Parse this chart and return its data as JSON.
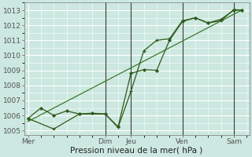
{
  "xlabel": "Pression niveau de la mer( hPa )",
  "bg_color": "#cce8e0",
  "grid_color_major": "#ffffff",
  "grid_color_minor": "#ddf5ef",
  "line_color1": "#2d5a1b",
  "line_color2": "#2d5a1b",
  "line_color3": "#3a7a2a",
  "ylim": [
    1004.7,
    1013.5
  ],
  "yticks": [
    1005,
    1006,
    1007,
    1008,
    1009,
    1010,
    1011,
    1012,
    1013
  ],
  "xlim": [
    -0.15,
    8.6
  ],
  "day_labels": [
    "Mer",
    "",
    "Dim",
    "Jeu",
    "",
    "Ven",
    "",
    "Sam"
  ],
  "day_positions": [
    0,
    1.5,
    3,
    4,
    5,
    6,
    7,
    8
  ],
  "vline_positions": [
    3,
    4,
    6,
    8
  ],
  "line1_x": [
    0.0,
    1.0,
    2.0,
    3.0,
    3.5,
    4.0,
    4.5,
    5.0,
    5.5,
    6.0,
    6.5,
    7.0,
    7.5,
    8.0,
    8.3
  ],
  "line1_y": [
    1005.8,
    1005.1,
    1006.1,
    1006.1,
    1005.2,
    1007.6,
    1010.3,
    1011.0,
    1011.1,
    1012.3,
    1012.5,
    1012.15,
    1012.3,
    1013.05,
    1013.0
  ],
  "line2_x": [
    0.0,
    0.5,
    1.0,
    1.5,
    2.0,
    2.5,
    3.0,
    3.5,
    4.0,
    4.5,
    5.0,
    5.5,
    6.0,
    6.5,
    7.0,
    7.5,
    8.0,
    8.3
  ],
  "line2_y": [
    1005.8,
    1006.5,
    1006.0,
    1006.3,
    1006.1,
    1006.15,
    1006.1,
    1005.25,
    1008.8,
    1009.05,
    1009.0,
    1011.0,
    1012.25,
    1012.5,
    1012.15,
    1012.4,
    1013.0,
    1013.0
  ],
  "line3_x": [
    0.0,
    8.3
  ],
  "line3_y": [
    1005.6,
    1013.0
  ],
  "marker_size_plus": 3.5,
  "marker_size_diamond": 2.2,
  "font_size_ticks": 6.5,
  "font_size_xlabel": 7.5
}
